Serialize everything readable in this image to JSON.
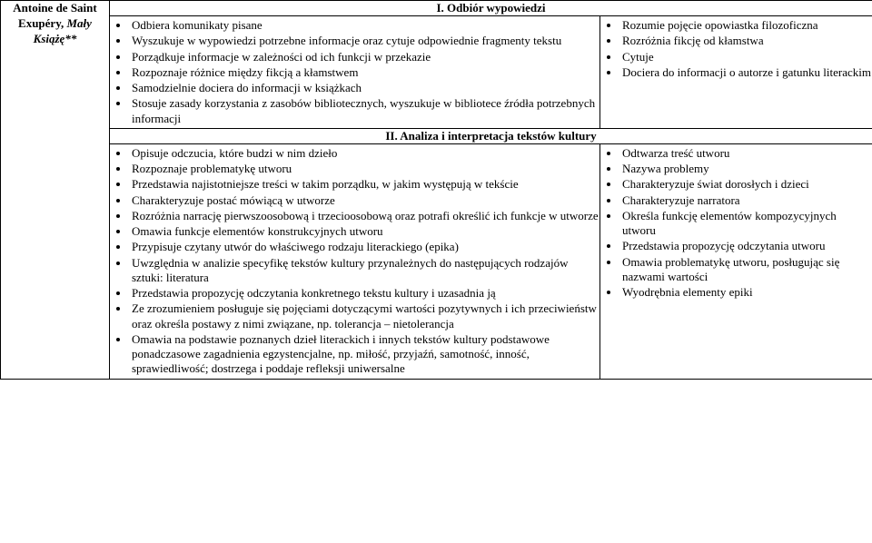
{
  "leftCell": {
    "author": "Antoine de Saint Exupéry,",
    "title": "Mały Książę**"
  },
  "section1": {
    "header": "I. Odbiór wypowiedzi",
    "midBullets": [
      "Odbiera komunikaty pisane",
      "Wyszukuje w wypowiedzi potrzebne informacje oraz cytuje odpowiednie fragmenty tekstu",
      "Porządkuje informacje w zależności od ich funkcji w przekazie",
      "Rozpoznaje różnice między fikcją a kłamstwem",
      "Samodzielnie dociera do informacji w książkach",
      "Stosuje zasady korzystania z zasobów bibliotecznych, wyszukuje w bibliotece źródła potrzebnych informacji"
    ],
    "rightBullets": [
      "Rozumie pojęcie opowiastka filozoficzna",
      "Rozróżnia fikcję od kłamstwa",
      "Cytuje",
      "Dociera do informacji o autorze i gatunku literackim"
    ]
  },
  "section2": {
    "header": "II. Analiza i interpretacja tekstów kultury",
    "midBullets": [
      "Opisuje odczucia, które budzi w nim dzieło",
      "Rozpoznaje problematykę utworu",
      "Przedstawia najistotniejsze treści w takim porządku, w jakim występują w tekście",
      "Charakteryzuje postać mówiącą w utworze",
      "Rozróżnia narrację pierwszoosobową i trzecioosobową oraz potrafi określić ich funkcje w utworze",
      "Omawia funkcje elementów konstrukcyjnych utworu",
      "Przypisuje czytany utwór do właściwego rodzaju literackiego (epika)",
      "Uwzględnia w analizie specyfikę tekstów kultury przynależnych do następujących rodzajów sztuki: literatura",
      "Przedstawia propozycję odczytania konkretnego tekstu kultury i uzasadnia ją",
      "Ze zrozumieniem posługuje się pojęciami dotyczącymi wartości pozytywnych i ich przeciwieństw oraz określa postawy z nimi związane, np. tolerancja – nietolerancja",
      "Omawia na podstawie poznanych dzieł literackich i innych tekstów kultury podstawowe ponadczasowe zagadnienia egzystencjalne, np. miłość, przyjaźń, samotność, inność, sprawiedliwość; dostrzega i poddaje refleksji uniwersalne"
    ],
    "rightBullets": [
      "Odtwarza treść utworu",
      "Nazywa problemy",
      "Charakteryzuje świat dorosłych i dzieci",
      "Charakteryzuje narratora",
      "Określa funkcję elementów kompozycyjnych utworu",
      "Przedstawia propozycję odczytania utworu",
      "Omawia problematykę utworu, posługując się nazwami wartości",
      "Wyodrębnia elementy epiki"
    ]
  }
}
